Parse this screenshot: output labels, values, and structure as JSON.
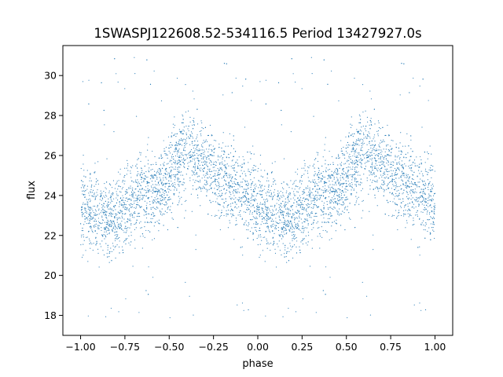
{
  "chart_data": {
    "type": "scatter",
    "title": "1SWASPJ122608.52-534116.5 Period 13427927.0s",
    "xlabel": "phase",
    "ylabel": "flux",
    "xlim": [
      -1.1,
      1.1
    ],
    "ylim": [
      17.0,
      31.5
    ],
    "xticks": [
      -1.0,
      -0.75,
      -0.5,
      -0.25,
      0.0,
      0.25,
      0.5,
      0.75,
      1.0
    ],
    "xtick_labels": [
      "−1.00",
      "−0.75",
      "−0.50",
      "−0.25",
      "0.00",
      "0.25",
      "0.50",
      "0.75",
      "1.00"
    ],
    "yticks": [
      18,
      20,
      22,
      24,
      26,
      28,
      30
    ],
    "ytick_labels": [
      "18",
      "20",
      "22",
      "24",
      "26",
      "28",
      "30"
    ],
    "grid": false,
    "legend": "none",
    "marker_color": "#1f77b4",
    "phase_folded": true,
    "mean_curve": {
      "phase": [
        0.0,
        0.05,
        0.1,
        0.15,
        0.2,
        0.25,
        0.3,
        0.35,
        0.4,
        0.45,
        0.5,
        0.55,
        0.6,
        0.65,
        0.7,
        0.75,
        0.8,
        0.85,
        0.9,
        0.95,
        1.0
      ],
      "flux": [
        23.6,
        23.2,
        23.0,
        22.9,
        23.0,
        23.4,
        23.8,
        24.0,
        24.2,
        24.4,
        24.7,
        25.6,
        26.5,
        26.0,
        25.3,
        25.1,
        24.8,
        24.5,
        24.3,
        24.0,
        23.6
      ]
    },
    "scatter_width": 1.0,
    "outlier_range": [
      17.6,
      31.0
    ]
  }
}
